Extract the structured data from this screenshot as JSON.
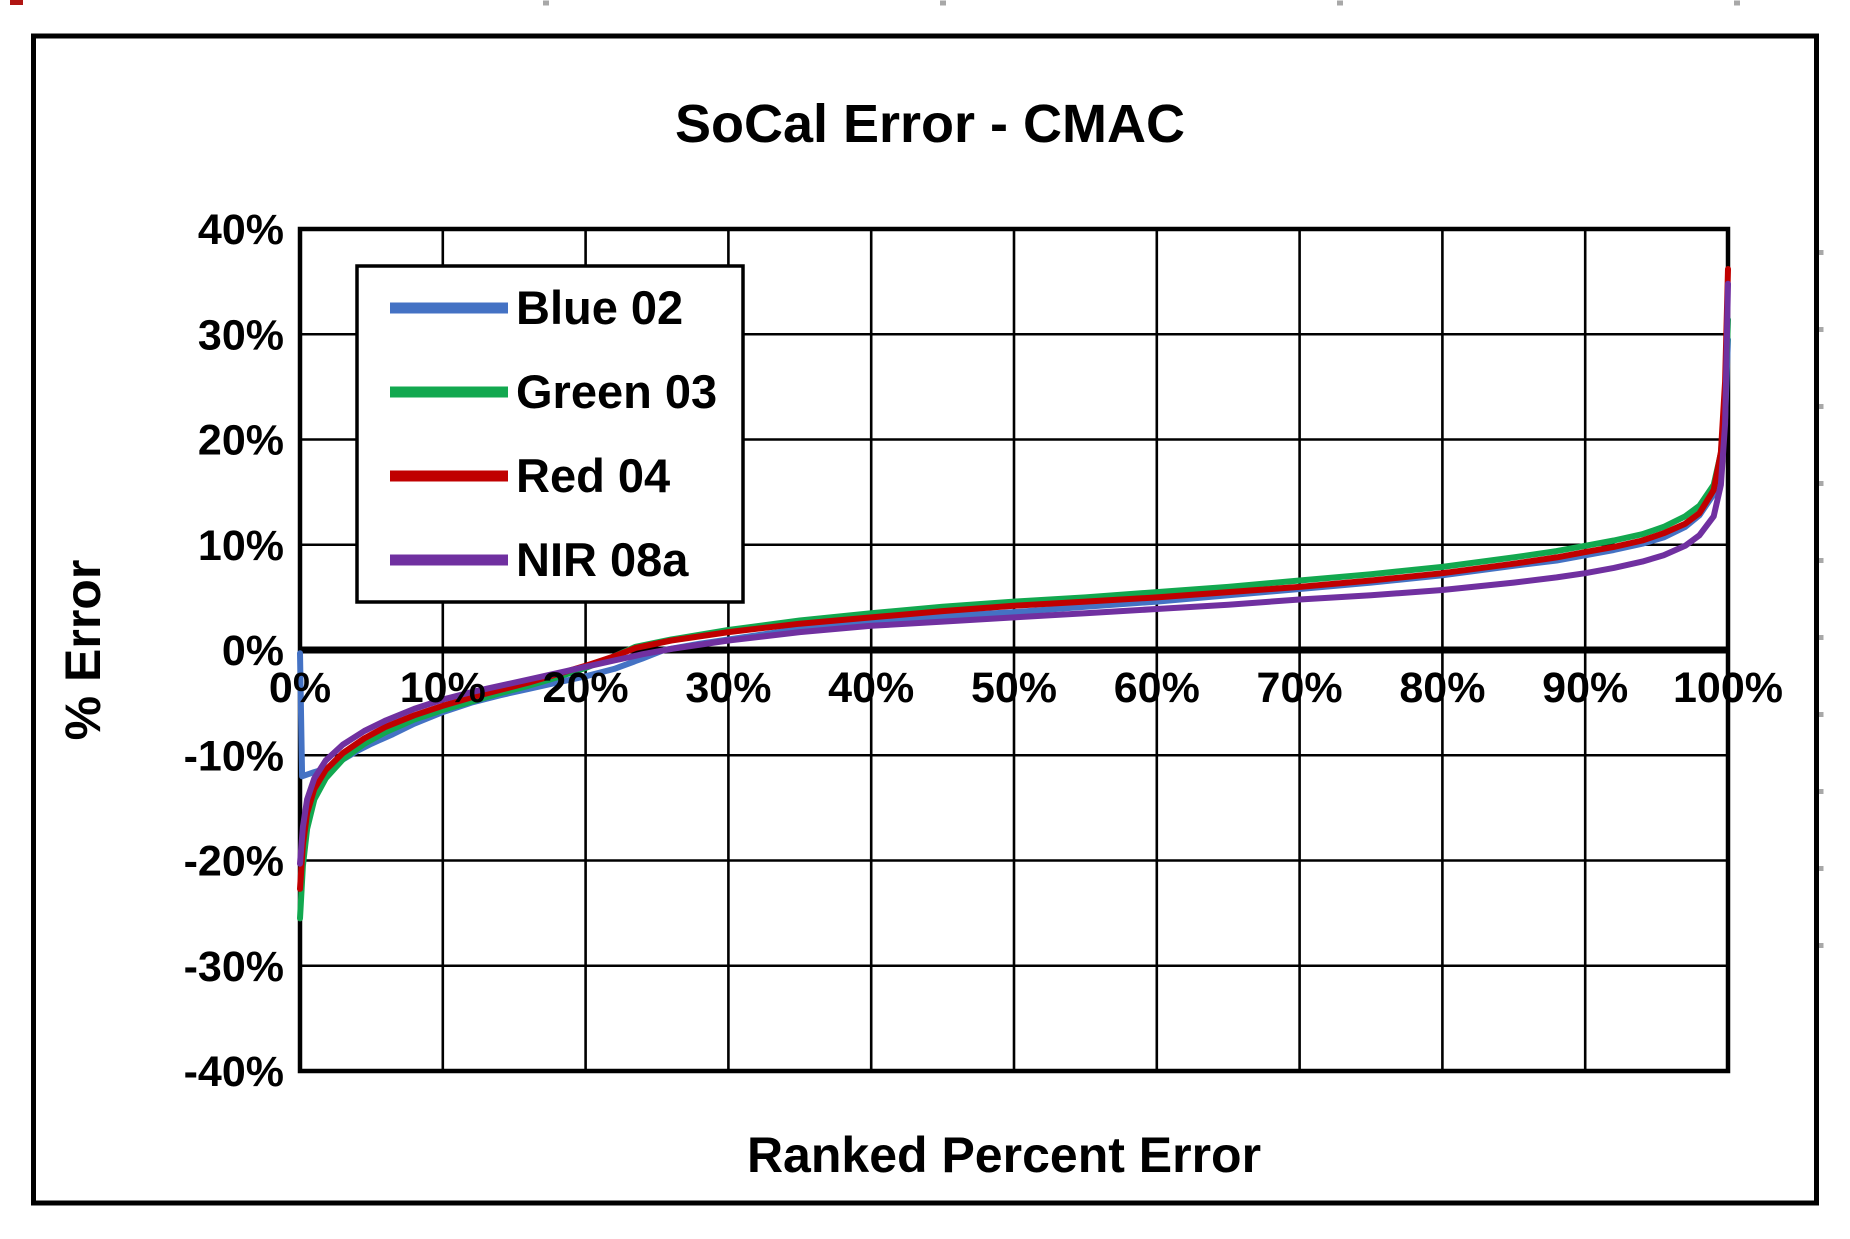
{
  "chart_data": {
    "type": "line",
    "title": "SoCal Error - CMAC",
    "xlabel": "Ranked Percent Error",
    "ylabel": "% Error",
    "xlim": [
      0,
      100
    ],
    "ylim": [
      -40,
      40
    ],
    "grid": "on",
    "legend_position": "top-left-inside",
    "x_ticks": [
      {
        "value": 0,
        "label": "0%"
      },
      {
        "value": 10,
        "label": "10%"
      },
      {
        "value": 20,
        "label": "20%"
      },
      {
        "value": 30,
        "label": "30%"
      },
      {
        "value": 40,
        "label": "40%"
      },
      {
        "value": 50,
        "label": "50%"
      },
      {
        "value": 60,
        "label": "60%"
      },
      {
        "value": 70,
        "label": "70%"
      },
      {
        "value": 80,
        "label": "80%"
      },
      {
        "value": 90,
        "label": "90%"
      },
      {
        "value": 100,
        "label": "100%"
      }
    ],
    "y_ticks": [
      {
        "value": 40,
        "label": "40%"
      },
      {
        "value": 30,
        "label": "30%"
      },
      {
        "value": 20,
        "label": "20%"
      },
      {
        "value": 10,
        "label": "10%"
      },
      {
        "value": 0,
        "label": "0%"
      },
      {
        "value": -10,
        "label": "-10%"
      },
      {
        "value": -20,
        "label": "-20%"
      },
      {
        "value": -30,
        "label": "-30%"
      },
      {
        "value": -40,
        "label": "-40%"
      }
    ],
    "series": [
      {
        "name": "Blue 02",
        "color": "#4472C4",
        "points": [
          [
            0,
            -0.3
          ],
          [
            0.15,
            -12
          ],
          [
            1,
            -11.6
          ],
          [
            2,
            -11.2
          ],
          [
            3,
            -10.4
          ],
          [
            4,
            -9.6
          ],
          [
            5,
            -8.9
          ],
          [
            6.5,
            -8
          ],
          [
            8,
            -7
          ],
          [
            10,
            -5.9
          ],
          [
            12,
            -5
          ],
          [
            14,
            -4.3
          ],
          [
            16,
            -3.7
          ],
          [
            18,
            -3.1
          ],
          [
            20,
            -2.5
          ],
          [
            22,
            -1.8
          ],
          [
            24,
            -0.8
          ],
          [
            25.5,
            0
          ],
          [
            28,
            0.6
          ],
          [
            31,
            1.2
          ],
          [
            35,
            2
          ],
          [
            40,
            2.7
          ],
          [
            45,
            3.2
          ],
          [
            50,
            3.6
          ],
          [
            55,
            4.1
          ],
          [
            60,
            4.6
          ],
          [
            65,
            5.2
          ],
          [
            70,
            5.8
          ],
          [
            75,
            6.4
          ],
          [
            80,
            7.1
          ],
          [
            85,
            8
          ],
          [
            88,
            8.5
          ],
          [
            90,
            9
          ],
          [
            92,
            9.5
          ],
          [
            94,
            10.1
          ],
          [
            95.5,
            10.7
          ],
          [
            97,
            11.7
          ],
          [
            98,
            12.8
          ],
          [
            99,
            14.8
          ],
          [
            99.5,
            17.5
          ],
          [
            99.8,
            22
          ],
          [
            100,
            29.5
          ]
        ]
      },
      {
        "name": "Green 03",
        "color": "#12A84F",
        "points": [
          [
            0,
            -25.5
          ],
          [
            0.2,
            -20.5
          ],
          [
            0.5,
            -17
          ],
          [
            1,
            -14.2
          ],
          [
            1.8,
            -12.2
          ],
          [
            3,
            -10.4
          ],
          [
            4.5,
            -8.9
          ],
          [
            6,
            -7.8
          ],
          [
            8,
            -6.6
          ],
          [
            10,
            -5.7
          ],
          [
            12,
            -4.9
          ],
          [
            14,
            -4.1
          ],
          [
            16,
            -3.4
          ],
          [
            18,
            -2.6
          ],
          [
            20,
            -1.7
          ],
          [
            21.5,
            -0.9
          ],
          [
            23.5,
            0.3
          ],
          [
            26,
            1
          ],
          [
            30,
            1.9
          ],
          [
            35,
            2.8
          ],
          [
            40,
            3.5
          ],
          [
            45,
            4.1
          ],
          [
            50,
            4.6
          ],
          [
            55,
            5
          ],
          [
            60,
            5.5
          ],
          [
            65,
            6
          ],
          [
            70,
            6.6
          ],
          [
            75,
            7.2
          ],
          [
            80,
            7.9
          ],
          [
            85,
            8.8
          ],
          [
            88,
            9.4
          ],
          [
            90,
            9.9
          ],
          [
            92,
            10.4
          ],
          [
            94,
            11
          ],
          [
            95.5,
            11.7
          ],
          [
            97,
            12.7
          ],
          [
            98,
            13.7
          ],
          [
            99,
            15.7
          ],
          [
            99.5,
            18.7
          ],
          [
            99.8,
            23.5
          ],
          [
            100,
            31.4
          ]
        ]
      },
      {
        "name": "Red 04",
        "color": "#C00000",
        "points": [
          [
            0,
            -22.7
          ],
          [
            0.2,
            -18.5
          ],
          [
            0.5,
            -15.5
          ],
          [
            1,
            -13.2
          ],
          [
            1.8,
            -11.4
          ],
          [
            3,
            -9.8
          ],
          [
            4.5,
            -8.4
          ],
          [
            6,
            -7.3
          ],
          [
            8,
            -6.2
          ],
          [
            10,
            -5.3
          ],
          [
            12,
            -4.5
          ],
          [
            14,
            -3.8
          ],
          [
            16,
            -3.1
          ],
          [
            18,
            -2.3
          ],
          [
            20,
            -1.5
          ],
          [
            22,
            -0.6
          ],
          [
            23.5,
            0.2
          ],
          [
            26,
            0.9
          ],
          [
            30,
            1.7
          ],
          [
            35,
            2.5
          ],
          [
            40,
            3.1
          ],
          [
            45,
            3.7
          ],
          [
            50,
            4.2
          ],
          [
            55,
            4.6
          ],
          [
            60,
            5
          ],
          [
            65,
            5.5
          ],
          [
            70,
            6
          ],
          [
            75,
            6.6
          ],
          [
            80,
            7.3
          ],
          [
            85,
            8.2
          ],
          [
            88,
            8.8
          ],
          [
            90,
            9.3
          ],
          [
            92,
            9.8
          ],
          [
            94,
            10.4
          ],
          [
            95.5,
            11.1
          ],
          [
            97,
            12
          ],
          [
            98,
            13
          ],
          [
            99,
            15.2
          ],
          [
            99.5,
            18.8
          ],
          [
            99.8,
            25.5
          ],
          [
            100,
            36.2
          ]
        ]
      },
      {
        "name": "NIR 08a",
        "color": "#7030A0",
        "points": [
          [
            0,
            -20.3
          ],
          [
            0.2,
            -16.8
          ],
          [
            0.5,
            -14.2
          ],
          [
            1,
            -12.2
          ],
          [
            1.8,
            -10.5
          ],
          [
            3,
            -9
          ],
          [
            4.5,
            -7.7
          ],
          [
            6,
            -6.7
          ],
          [
            8,
            -5.6
          ],
          [
            10,
            -4.7
          ],
          [
            12,
            -4
          ],
          [
            14,
            -3.4
          ],
          [
            16,
            -2.8
          ],
          [
            18,
            -2.2
          ],
          [
            20,
            -1.6
          ],
          [
            22,
            -1
          ],
          [
            24,
            -0.4
          ],
          [
            26,
            0.1
          ],
          [
            30,
            0.9
          ],
          [
            35,
            1.7
          ],
          [
            40,
            2.3
          ],
          [
            45,
            2.7
          ],
          [
            50,
            3.1
          ],
          [
            55,
            3.5
          ],
          [
            60,
            3.9
          ],
          [
            65,
            4.3
          ],
          [
            70,
            4.8
          ],
          [
            75,
            5.2
          ],
          [
            80,
            5.7
          ],
          [
            85,
            6.4
          ],
          [
            88,
            6.9
          ],
          [
            90,
            7.3
          ],
          [
            92,
            7.8
          ],
          [
            94,
            8.4
          ],
          [
            95.5,
            9
          ],
          [
            97,
            9.9
          ],
          [
            98,
            10.9
          ],
          [
            99,
            12.7
          ],
          [
            99.5,
            15.7
          ],
          [
            99.8,
            21.5
          ],
          [
            100,
            34.8
          ]
        ]
      }
    ],
    "style": {
      "line_width": 6,
      "gridline_color": "#000000",
      "gridline_width": 2.6,
      "zero_line_width": 7,
      "plot_border_width": 4.5,
      "outer_border_width": 5,
      "background": "#ffffff",
      "artifact_mark_color": "#b01513",
      "artifact_tick_color": "#a8a8a8"
    }
  }
}
